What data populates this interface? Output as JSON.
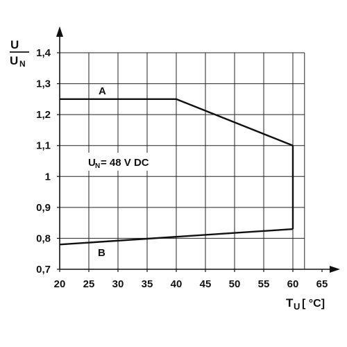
{
  "chart_data": {
    "type": "line",
    "ylabel": {
      "numerator": "U",
      "denominator_base": "U",
      "denominator_sub": "N"
    },
    "xlabel": {
      "base": "T",
      "sub": "U",
      "unit": "[ °C]"
    },
    "xlim": [
      20,
      62
    ],
    "ylim": [
      0.7,
      1.4
    ],
    "x_ticks": [
      "20",
      "25",
      "30",
      "35",
      "40",
      "45",
      "50",
      "55",
      "60",
      "65"
    ],
    "y_ticks": [
      "0,7",
      "0,8",
      "0,9",
      "1",
      "1,1",
      "1,2",
      "1,3",
      "1,4"
    ],
    "grid": true,
    "series": [
      {
        "name": "A",
        "x": [
          20,
          40,
          60
        ],
        "y": [
          1.25,
          1.25,
          1.1
        ]
      },
      {
        "name": "B",
        "x": [
          20,
          60
        ],
        "y": [
          0.78,
          0.83
        ]
      }
    ],
    "connector": {
      "x": [
        60,
        60
      ],
      "y": [
        1.1,
        0.83
      ]
    },
    "annotation": {
      "base": "U",
      "sub": "N",
      "text": "= 48 V DC"
    }
  }
}
